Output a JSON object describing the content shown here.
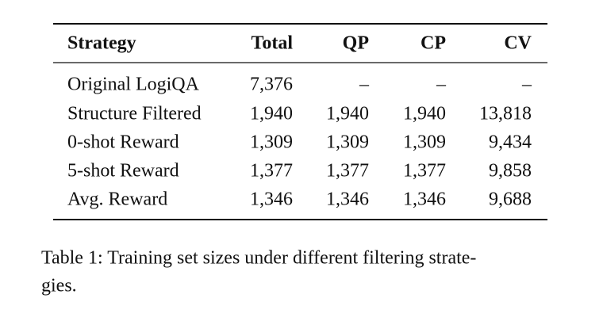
{
  "table": {
    "header": [
      "Strategy",
      "Total",
      "QP",
      "CP",
      "CV"
    ],
    "rows": [
      [
        "Original LogiQA",
        "7,376",
        "–",
        "–",
        "–"
      ],
      [
        "Structure Filtered",
        "1,940",
        "1,940",
        "1,940",
        "13,818"
      ],
      [
        "0-shot Reward",
        "1,309",
        "1,309",
        "1,309",
        "9,434"
      ],
      [
        "5-shot Reward",
        "1,377",
        "1,377",
        "1,377",
        "9,858"
      ],
      [
        "Avg. Reward",
        "1,346",
        "1,346",
        "1,346",
        "9,688"
      ]
    ]
  },
  "caption": [
    "Table 1: Training set sizes under different filtering strate-",
    "gies."
  ]
}
